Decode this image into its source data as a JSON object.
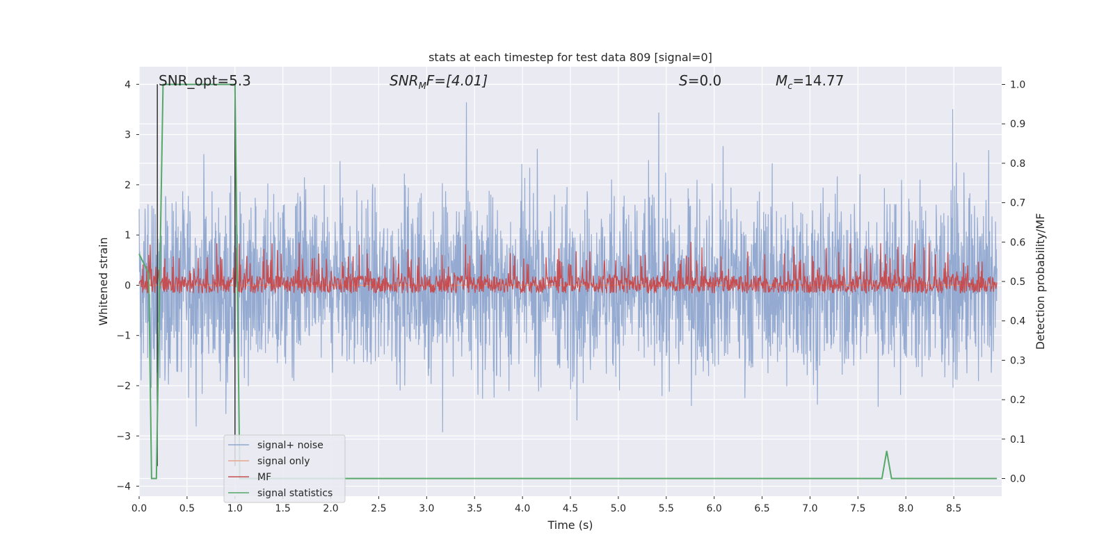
{
  "chart_data": {
    "type": "line",
    "title": "stats at each timestep for test data 809 [signal=0]",
    "xlabel": "Time (s)",
    "ylabel_left": "Whitened strain",
    "ylabel_right": "Detection probability/MF",
    "xlim": [
      0.0,
      9.0
    ],
    "ylim_left": [
      -4.2,
      4.35
    ],
    "ylim_right": [
      -0.045,
      1.045
    ],
    "grid": true,
    "x_ticks": [
      "0.0",
      "0.5",
      "1.0",
      "1.5",
      "2.0",
      "2.5",
      "3.0",
      "3.5",
      "4.0",
      "4.5",
      "5.0",
      "5.5",
      "6.0",
      "6.5",
      "7.0",
      "7.5",
      "8.0",
      "8.5"
    ],
    "y_left_ticks": [
      "4",
      "3",
      "2",
      "1",
      "0",
      "−1",
      "−2",
      "−3",
      "−4"
    ],
    "y_right_ticks": [
      "1.0",
      "0.9",
      "0.8",
      "0.7",
      "0.6",
      "0.5",
      "0.4",
      "0.3",
      "0.2",
      "0.1",
      "0.0"
    ],
    "annotations": {
      "snr_opt": "SNR_opt=5.3",
      "snr_mf_sym": "SNR",
      "snr_mf_sub": "M",
      "snr_mf_rest": "F=[4.01]",
      "s_sym": "S",
      "s_rest": "=0.0",
      "mc_sym": "M",
      "mc_sub": "c",
      "mc_rest": "=14.77"
    },
    "legend": {
      "position": "lower-left",
      "entries": [
        "signal+ noise",
        "signal only",
        "MF",
        "signal statistics"
      ]
    },
    "series": [
      {
        "name": "signal+ noise",
        "axis": "left",
        "color": "#8fa6cf",
        "description_range": [
          -3.3,
          3.7
        ]
      },
      {
        "name": "signal only",
        "axis": "left",
        "color": "#e8a58a",
        "values_constant": 0.0
      },
      {
        "name": "MF",
        "axis": "right",
        "color": "#c44e52",
        "range": [
          0.47,
          0.6
        ]
      },
      {
        "name": "signal statistics",
        "axis": "right",
        "color": "#55a868",
        "x": [
          0.0,
          0.1,
          0.13,
          0.18,
          0.25,
          0.3,
          0.9,
          1.0,
          1.05,
          1.1,
          7.75,
          7.8,
          7.85,
          8.95
        ],
        "y": [
          0.57,
          0.52,
          0.0,
          0.0,
          1.0,
          1.0,
          1.0,
          1.0,
          0.0,
          0.0,
          0.0,
          0.07,
          0.0,
          0.0
        ]
      }
    ],
    "vlines": [
      0.19,
      1.0
    ]
  }
}
